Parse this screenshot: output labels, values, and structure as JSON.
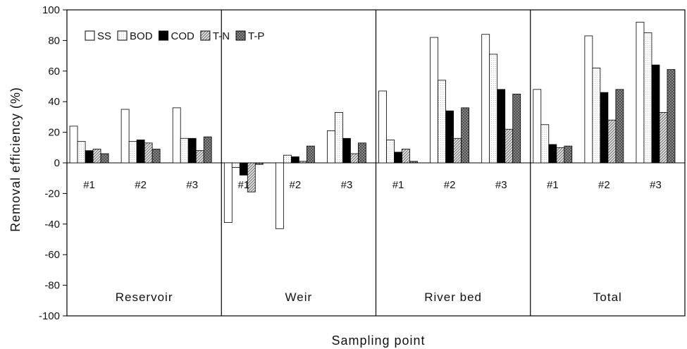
{
  "chart_data": {
    "type": "bar",
    "ylabel": "Removal efficiency (%)",
    "xlabel": "Sampling point",
    "ylim": [
      -100,
      100
    ],
    "yticks": [
      -100,
      -80,
      -60,
      -40,
      -20,
      0,
      20,
      40,
      60,
      80,
      100
    ],
    "grid": false,
    "legend_position": "top-left",
    "series": [
      {
        "name": "SS",
        "pattern": "white",
        "color": "#ffffff"
      },
      {
        "name": "BOD",
        "pattern": "light-dots",
        "color": "#f4f4f4"
      },
      {
        "name": "COD",
        "pattern": "black",
        "color": "#000000"
      },
      {
        "name": "T-N",
        "pattern": "diagonal-lines",
        "color": "#bdbdbd"
      },
      {
        "name": "T-P",
        "pattern": "dark-crosshatch",
        "color": "#7a7a7a"
      }
    ],
    "sections": [
      {
        "name": "Reservoir",
        "groups": [
          {
            "label": "#1",
            "values": [
              24,
              14,
              8,
              9,
              6
            ]
          },
          {
            "label": "#2",
            "values": [
              35,
              14,
              15,
              13,
              9
            ]
          },
          {
            "label": "#3",
            "values": [
              36,
              16,
              16,
              8,
              17
            ]
          }
        ]
      },
      {
        "name": "Weir",
        "groups": [
          {
            "label": "#1",
            "values": [
              -39,
              -3,
              -8,
              -19,
              -1
            ]
          },
          {
            "label": "#2",
            "values": [
              -43,
              5,
              4,
              1,
              11
            ]
          },
          {
            "label": "#3",
            "values": [
              21,
              33,
              16,
              6,
              13
            ]
          }
        ]
      },
      {
        "name": "River bed",
        "groups": [
          {
            "label": "#1",
            "values": [
              47,
              15,
              7,
              9,
              1
            ]
          },
          {
            "label": "#2",
            "values": [
              82,
              54,
              34,
              16,
              36
            ]
          },
          {
            "label": "#3",
            "values": [
              84,
              71,
              48,
              22,
              45
            ]
          }
        ]
      },
      {
        "name": "Total",
        "groups": [
          {
            "label": "#1",
            "values": [
              48,
              25,
              12,
              10,
              11
            ]
          },
          {
            "label": "#2",
            "values": [
              83,
              62,
              46,
              28,
              48
            ]
          },
          {
            "label": "#3",
            "values": [
              92,
              85,
              64,
              33,
              61
            ]
          }
        ]
      }
    ]
  }
}
